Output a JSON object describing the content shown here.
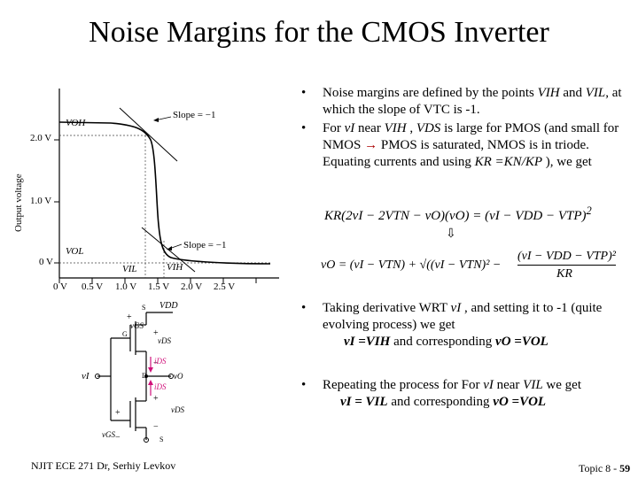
{
  "slide": {
    "title": "Noise Margins for the CMOS Inverter",
    "footer_left": "NJIT ECE 271  Dr, Serhiy Levkov",
    "footer_right_prefix": "Topic 8 - ",
    "footer_right_num": "59"
  },
  "graph": {
    "ylabel": "Output voltage",
    "yticks": [
      "2.0 V",
      "1.0 V",
      "0 V"
    ],
    "xticks": [
      "0 V",
      "0.5 V",
      "1.0 V",
      "1.5 V",
      "2.0 V",
      "2.5 V"
    ],
    "label_voh": "VOH",
    "label_vol": "VOL",
    "label_vil": "VIL",
    "label_vih": "VIH",
    "slope_top": "Slope = −1",
    "slope_bottom": "Slope = −1"
  },
  "circuit": {
    "vdd": "VDD",
    "s_top": "S",
    "s_bot": "S",
    "g": "G",
    "d": "D",
    "vi": "vI",
    "vo": "vO",
    "vgs_top": "vGS",
    "vds_top": "vDS",
    "vgs_bot": "vGS",
    "vds_bot": "vDS",
    "ids_top": "iDS",
    "ids_bot": "iDS"
  },
  "bullets": {
    "b1_a": "Noise margins are defined by the points ",
    "b1_vih": "VIH",
    "b1_b": " and ",
    "b1_vil": "VIL",
    "b1_c": ",  at which the slope of VTC is -1.",
    "b2_a": "For ",
    "b2_vi": "vI",
    "b2_b": " near ",
    "b2_vih": "VIH",
    "b2_c": " , ",
    "b2_vds": "VDS",
    "b2_d": " is large for PMOS (and small for NMOS ",
    "b2_e": " PMOS is saturated, NMOS is in triode. Equating currents and using ",
    "b2_kr": "KR =KN/KP",
    "b2_f": " ), we get",
    "b3_a": "Taking derivative WRT ",
    "b3_vi": "vI",
    "b3_b": " , and setting it to -1 (quite evolving process) we get",
    "b3_c": "vI =VIH",
    "b3_d": "  and corresponding ",
    "b3_e": "vO =VOL",
    "b4_a": "Repeating the process for For ",
    "b4_vi": "vI",
    "b4_b": " near ",
    "b4_vil": "VIL",
    "b4_c": " we get",
    "b4_d": "vI = VIL",
    "b4_e": " and corresponding ",
    "b4_f": "vO =VOL"
  },
  "equations": {
    "eq1_lhs": "KR(2vI − 2VTN − vO)(vO) = (vI − VDD − VTP)",
    "eq1_exp": "2",
    "eq2_lhs": "vO = (vI − VTN) + √((vI − VTN)² −",
    "eq2_num": "(vI − VDD − VTP)²",
    "eq2_den": "KR"
  }
}
